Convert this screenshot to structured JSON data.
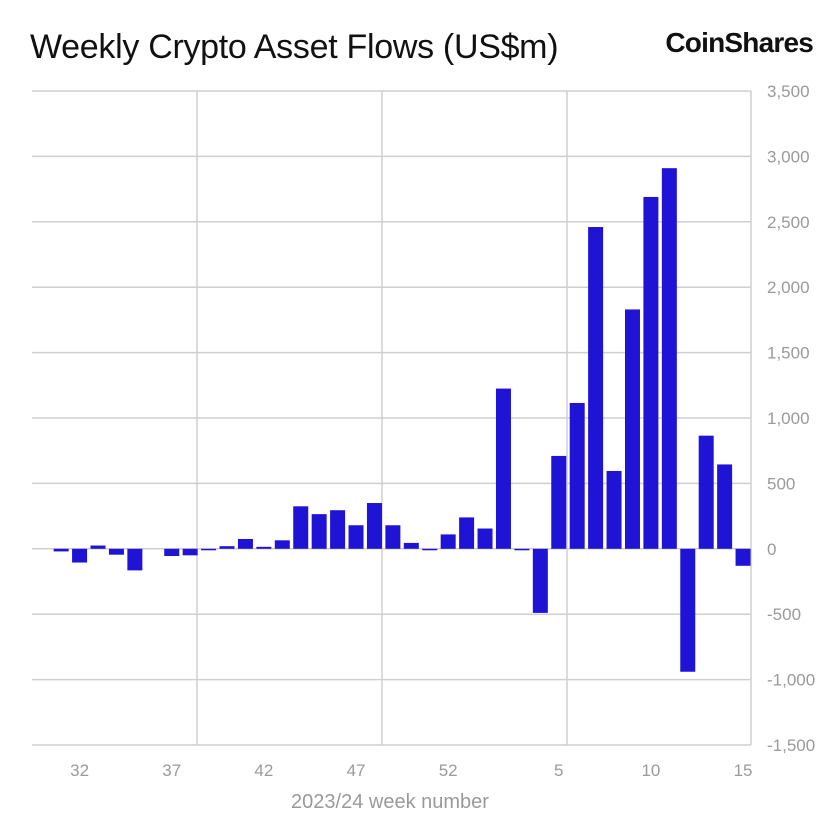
{
  "header": {
    "title": "Weekly Crypto Asset Flows (US$m)",
    "brand": "CoinShares"
  },
  "colors": {
    "bar": "#1f14d6",
    "grid": "#cfcfcf",
    "axis_text": "#9a9a9a",
    "title_text": "#111111"
  },
  "chart_data": {
    "type": "bar",
    "title": "Weekly Crypto Asset Flows (US$m)",
    "xlabel": "2023/24 week number",
    "ylabel": "",
    "ylim": [
      -1500,
      3500
    ],
    "yticks": [
      -1500,
      -1000,
      -500,
      0,
      500,
      1000,
      1500,
      2000,
      2500,
      3000,
      3500
    ],
    "ytick_labels": [
      "-1,500",
      "-1,000",
      "-500",
      "0",
      "500",
      "1,000",
      "1,500",
      "2,000",
      "2,500",
      "3,000",
      "3,500"
    ],
    "x_tick_labels": [
      "32",
      "37",
      "42",
      "47",
      "52",
      "5",
      "10",
      "15"
    ],
    "y_axis_position": "right",
    "grid": true,
    "categories": [
      "30",
      "31",
      "32",
      "33",
      "34",
      "35",
      "36",
      "37",
      "38",
      "39",
      "40",
      "41",
      "42",
      "43",
      "44",
      "45",
      "46",
      "47",
      "48",
      "49",
      "50",
      "51",
      "52",
      "53",
      "1",
      "2",
      "3",
      "4",
      "5",
      "6",
      "7",
      "8",
      "9",
      "10",
      "11",
      "12",
      "13",
      "14",
      "15"
    ],
    "values": [
      0,
      -20,
      -105,
      25,
      -45,
      -165,
      0,
      -55,
      -50,
      -10,
      20,
      75,
      15,
      65,
      325,
      265,
      295,
      180,
      350,
      180,
      45,
      -10,
      110,
      240,
      155,
      1225,
      -10,
      -490,
      710,
      1115,
      2460,
      595,
      1830,
      2690,
      2910,
      -940,
      865,
      645,
      -130
    ]
  }
}
